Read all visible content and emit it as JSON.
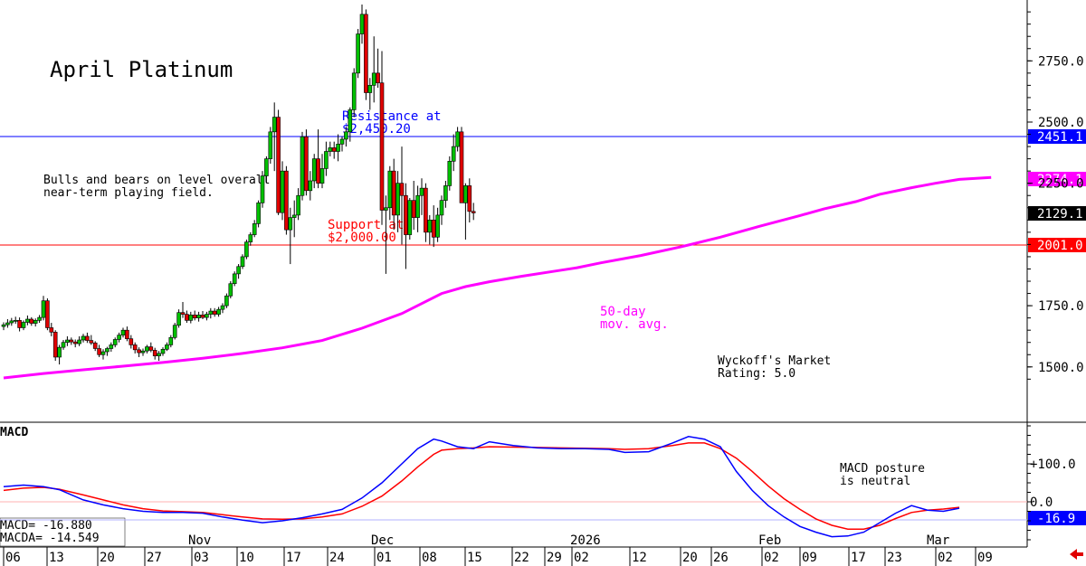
{
  "chart_data": {
    "type": "candlestick",
    "title": "April Platinum",
    "annotations": {
      "comment": [
        "Bulls and bears on level overall",
        "near-term playing field."
      ],
      "resistance": [
        "Resistance at",
        "$2,450.20"
      ],
      "support": [
        "Support at",
        "$2,000.00"
      ],
      "ma": [
        "50-day",
        "mov. avg."
      ],
      "rating": [
        "Wyckoff's Market",
        "Rating: 5.0"
      ]
    },
    "levels": {
      "resistance": 2450.2,
      "support": 2000.0
    },
    "y_ticks": [
      {
        "value": 2750,
        "label": "2750.0"
      },
      {
        "value": 2500,
        "label": "2500.0"
      },
      {
        "value": 2250,
        "label": "2250.0"
      },
      {
        "value": 1750,
        "label": "1750.0"
      },
      {
        "value": 1500,
        "label": "1500.0"
      }
    ],
    "price_tags": [
      {
        "value": 2451.1,
        "text": "2451.1",
        "color": "#0000ff"
      },
      {
        "value": 2274.1,
        "text": "2274.1",
        "color": "#ff00ff"
      },
      {
        "value": 2129.1,
        "text": "2129.1",
        "color": "#000000"
      },
      {
        "value": 2001.0,
        "text": "2001.0",
        "color": "#ff0000"
      }
    ],
    "x_labels": [
      "06",
      "13",
      "20",
      "27",
      "03",
      "10",
      "17",
      "24",
      "01",
      "08",
      "15",
      "22",
      "29",
      "02",
      "12",
      "20",
      "26",
      "02",
      "09",
      "17",
      "23",
      "02",
      "09"
    ],
    "months": [
      "Nov",
      "Dec",
      "2026",
      "Feb",
      "Mar"
    ],
    "colors": {
      "up": "#00c000",
      "down": "#e00000",
      "ma": "#ff00ff",
      "macd": "#0000ff",
      "signal": "#ff0000"
    },
    "candles": [
      [
        1665,
        1682,
        1650,
        1672
      ],
      [
        1672,
        1695,
        1660,
        1680
      ],
      [
        1680,
        1700,
        1668,
        1688
      ],
      [
        1688,
        1705,
        1676,
        1690
      ],
      [
        1690,
        1702,
        1645,
        1660
      ],
      [
        1660,
        1690,
        1650,
        1682
      ],
      [
        1682,
        1710,
        1670,
        1695
      ],
      [
        1695,
        1703,
        1668,
        1678
      ],
      [
        1678,
        1698,
        1665,
        1690
      ],
      [
        1690,
        1712,
        1680,
        1702
      ],
      [
        1702,
        1790,
        1690,
        1770
      ],
      [
        1770,
        1780,
        1650,
        1660
      ],
      [
        1660,
        1680,
        1625,
        1642
      ],
      [
        1642,
        1650,
        1525,
        1540
      ],
      [
        1540,
        1590,
        1510,
        1580
      ],
      [
        1580,
        1610,
        1570,
        1600
      ],
      [
        1600,
        1625,
        1585,
        1610
      ],
      [
        1610,
        1620,
        1590,
        1602
      ],
      [
        1602,
        1612,
        1580,
        1595
      ],
      [
        1595,
        1625,
        1585,
        1610
      ],
      [
        1610,
        1635,
        1600,
        1625
      ],
      [
        1625,
        1640,
        1598,
        1608
      ],
      [
        1608,
        1630,
        1590,
        1598
      ],
      [
        1598,
        1605,
        1565,
        1575
      ],
      [
        1575,
        1590,
        1540,
        1550
      ],
      [
        1550,
        1572,
        1530,
        1562
      ],
      [
        1562,
        1582,
        1545,
        1575
      ],
      [
        1575,
        1600,
        1562,
        1590
      ],
      [
        1590,
        1620,
        1580,
        1612
      ],
      [
        1612,
        1640,
        1600,
        1630
      ],
      [
        1630,
        1660,
        1620,
        1650
      ],
      [
        1650,
        1665,
        1605,
        1615
      ],
      [
        1615,
        1630,
        1575,
        1590
      ],
      [
        1590,
        1600,
        1555,
        1570
      ],
      [
        1570,
        1580,
        1540,
        1558
      ],
      [
        1558,
        1575,
        1545,
        1565
      ],
      [
        1565,
        1590,
        1555,
        1582
      ],
      [
        1582,
        1600,
        1560,
        1568
      ],
      [
        1568,
        1578,
        1530,
        1545
      ],
      [
        1545,
        1565,
        1525,
        1555
      ],
      [
        1555,
        1580,
        1545,
        1572
      ],
      [
        1572,
        1600,
        1565,
        1590
      ],
      [
        1590,
        1630,
        1580,
        1620
      ],
      [
        1620,
        1680,
        1612,
        1670
      ],
      [
        1670,
        1735,
        1660,
        1722
      ],
      [
        1722,
        1765,
        1700,
        1715
      ],
      [
        1715,
        1730,
        1680,
        1690
      ],
      [
        1690,
        1725,
        1678,
        1712
      ],
      [
        1712,
        1730,
        1690,
        1700
      ],
      [
        1700,
        1725,
        1685,
        1712
      ],
      [
        1712,
        1728,
        1695,
        1702
      ],
      [
        1702,
        1725,
        1690,
        1715
      ],
      [
        1715,
        1740,
        1698,
        1728
      ],
      [
        1728,
        1740,
        1705,
        1715
      ],
      [
        1715,
        1745,
        1705,
        1735
      ],
      [
        1735,
        1760,
        1720,
        1750
      ],
      [
        1750,
        1800,
        1740,
        1790
      ],
      [
        1790,
        1850,
        1780,
        1840
      ],
      [
        1840,
        1890,
        1830,
        1880
      ],
      [
        1880,
        1920,
        1860,
        1910
      ],
      [
        1910,
        1960,
        1900,
        1950
      ],
      [
        1950,
        2020,
        1940,
        2010
      ],
      [
        2010,
        2050,
        1995,
        2040
      ],
      [
        2040,
        2100,
        2030,
        2085
      ],
      [
        2085,
        2180,
        2070,
        2170
      ],
      [
        2170,
        2300,
        2150,
        2280
      ],
      [
        2280,
        2360,
        2250,
        2350
      ],
      [
        2350,
        2480,
        2330,
        2460
      ],
      [
        2460,
        2580,
        2300,
        2520
      ],
      [
        2520,
        2550,
        2120,
        2130
      ],
      [
        2130,
        2340,
        2100,
        2300
      ],
      [
        2300,
        2320,
        2040,
        2060
      ],
      [
        2060,
        2150,
        1920,
        2110
      ],
      [
        2110,
        2180,
        2030,
        2120
      ],
      [
        2120,
        2230,
        2100,
        2200
      ],
      [
        2200,
        2460,
        2180,
        2440
      ],
      [
        2440,
        2470,
        2200,
        2220
      ],
      [
        2220,
        2300,
        2180,
        2260
      ],
      [
        2260,
        2370,
        2230,
        2350
      ],
      [
        2350,
        2470,
        2230,
        2250
      ],
      [
        2250,
        2370,
        2230,
        2310
      ],
      [
        2310,
        2420,
        2280,
        2380
      ],
      [
        2380,
        2420,
        2360,
        2395
      ],
      [
        2395,
        2420,
        2350,
        2380
      ],
      [
        2380,
        2450,
        2340,
        2410
      ],
      [
        2410,
        2440,
        2380,
        2430
      ],
      [
        2430,
        2480,
        2400,
        2460
      ],
      [
        2460,
        2560,
        2420,
        2550
      ],
      [
        2550,
        2720,
        2520,
        2700
      ],
      [
        2700,
        2880,
        2680,
        2860
      ],
      [
        2860,
        2980,
        2820,
        2940
      ],
      [
        2940,
        2960,
        2590,
        2620
      ],
      [
        2620,
        2680,
        2550,
        2650
      ],
      [
        2650,
        2850,
        2580,
        2700
      ],
      [
        2700,
        2800,
        2640,
        2660
      ],
      [
        2660,
        2790,
        2080,
        2140
      ],
      [
        2140,
        2200,
        1880,
        2150
      ],
      [
        2150,
        2320,
        2100,
        2300
      ],
      [
        2300,
        2350,
        2060,
        2120
      ],
      [
        2120,
        2300,
        2050,
        2250
      ],
      [
        2250,
        2400,
        2000,
        2200
      ],
      [
        2200,
        2250,
        1900,
        2040
      ],
      [
        2040,
        2190,
        2020,
        2180
      ],
      [
        2180,
        2260,
        2060,
        2110
      ],
      [
        2110,
        2240,
        2050,
        2200
      ],
      [
        2200,
        2270,
        2120,
        2230
      ],
      [
        2230,
        2250,
        2010,
        2050
      ],
      [
        2050,
        2120,
        2000,
        2100
      ],
      [
        2100,
        2160,
        1990,
        2030
      ],
      [
        2030,
        2150,
        2010,
        2120
      ],
      [
        2120,
        2200,
        2080,
        2180
      ],
      [
        2180,
        2260,
        2150,
        2240
      ],
      [
        2240,
        2360,
        2220,
        2340
      ],
      [
        2340,
        2450,
        2300,
        2400
      ],
      [
        2400,
        2480,
        2380,
        2460
      ],
      [
        2460,
        2480,
        2180,
        2170
      ],
      [
        2170,
        2250,
        2020,
        2240
      ],
      [
        2240,
        2270,
        2090,
        2135
      ],
      [
        2135,
        2170,
        2100,
        2129
      ]
    ],
    "ma50": [
      [
        0,
        1455
      ],
      [
        10,
        1473
      ],
      [
        20,
        1488
      ],
      [
        30,
        1503
      ],
      [
        40,
        1518
      ],
      [
        50,
        1535
      ],
      [
        60,
        1555
      ],
      [
        70,
        1578
      ],
      [
        80,
        1608
      ],
      [
        90,
        1658
      ],
      [
        100,
        1718
      ],
      [
        110,
        1800
      ],
      [
        116,
        1828
      ],
      [
        122,
        1848
      ],
      [
        130,
        1870
      ],
      [
        138,
        1890
      ],
      [
        144,
        1905
      ],
      [
        150,
        1925
      ],
      [
        160,
        1955
      ],
      [
        170,
        1990
      ],
      [
        180,
        2030
      ],
      [
        190,
        2075
      ],
      [
        200,
        2118
      ],
      [
        206,
        2145
      ],
      [
        214,
        2175
      ],
      [
        220,
        2205
      ],
      [
        228,
        2232
      ],
      [
        234,
        2250
      ],
      [
        240,
        2266
      ],
      [
        248,
        2274.1
      ]
    ],
    "macd": {
      "title": "MACD",
      "comment": [
        "MACD posture",
        "is neutral"
      ],
      "readout": [
        "MACD=   -16.880",
        "MACDA=  -14.549"
      ],
      "tag": "-16.9",
      "ticks": [
        {
          "value": 100,
          "label": "+100.0"
        },
        {
          "value": 0,
          "label": "0.0"
        }
      ],
      "macd_line": [
        [
          0,
          40
        ],
        [
          5,
          44
        ],
        [
          10,
          40
        ],
        [
          14,
          32
        ],
        [
          20,
          5
        ],
        [
          25,
          -8
        ],
        [
          30,
          -18
        ],
        [
          35,
          -25
        ],
        [
          40,
          -28
        ],
        [
          45,
          -28
        ],
        [
          50,
          -30
        ],
        [
          55,
          -40
        ],
        [
          60,
          -48
        ],
        [
          65,
          -55
        ],
        [
          70,
          -50
        ],
        [
          75,
          -42
        ],
        [
          80,
          -32
        ],
        [
          85,
          -20
        ],
        [
          90,
          10
        ],
        [
          95,
          50
        ],
        [
          100,
          100
        ],
        [
          104,
          140
        ],
        [
          108,
          165
        ],
        [
          110,
          160
        ],
        [
          114,
          145
        ],
        [
          118,
          140
        ],
        [
          122,
          158
        ],
        [
          128,
          148
        ],
        [
          134,
          142
        ],
        [
          140,
          140
        ],
        [
          146,
          140
        ],
        [
          152,
          138
        ],
        [
          156,
          130
        ],
        [
          162,
          132
        ],
        [
          168,
          155
        ],
        [
          172,
          172
        ],
        [
          176,
          165
        ],
        [
          180,
          145
        ],
        [
          184,
          80
        ],
        [
          188,
          30
        ],
        [
          192,
          -10
        ],
        [
          196,
          -40
        ],
        [
          200,
          -65
        ],
        [
          204,
          -80
        ],
        [
          208,
          -92
        ],
        [
          212,
          -90
        ],
        [
          216,
          -80
        ],
        [
          220,
          -55
        ],
        [
          224,
          -30
        ],
        [
          228,
          -10
        ],
        [
          232,
          -22
        ],
        [
          236,
          -25
        ],
        [
          240,
          -16.9
        ]
      ],
      "signal_line": [
        [
          0,
          30
        ],
        [
          5,
          36
        ],
        [
          10,
          38
        ],
        [
          14,
          33
        ],
        [
          20,
          18
        ],
        [
          25,
          5
        ],
        [
          30,
          -8
        ],
        [
          35,
          -18
        ],
        [
          40,
          -24
        ],
        [
          45,
          -26
        ],
        [
          50,
          -28
        ],
        [
          55,
          -34
        ],
        [
          60,
          -40
        ],
        [
          65,
          -45
        ],
        [
          70,
          -46
        ],
        [
          75,
          -45
        ],
        [
          80,
          -40
        ],
        [
          85,
          -32
        ],
        [
          90,
          -12
        ],
        [
          95,
          15
        ],
        [
          100,
          55
        ],
        [
          104,
          92
        ],
        [
          108,
          125
        ],
        [
          110,
          136
        ],
        [
          114,
          140
        ],
        [
          118,
          142
        ],
        [
          122,
          145
        ],
        [
          128,
          144
        ],
        [
          134,
          143
        ],
        [
          140,
          142
        ],
        [
          146,
          141
        ],
        [
          152,
          140
        ],
        [
          156,
          138
        ],
        [
          162,
          140
        ],
        [
          168,
          148
        ],
        [
          172,
          155
        ],
        [
          176,
          155
        ],
        [
          180,
          140
        ],
        [
          184,
          115
        ],
        [
          188,
          80
        ],
        [
          192,
          42
        ],
        [
          196,
          8
        ],
        [
          200,
          -20
        ],
        [
          204,
          -45
        ],
        [
          208,
          -62
        ],
        [
          212,
          -72
        ],
        [
          216,
          -72
        ],
        [
          220,
          -62
        ],
        [
          224,
          -44
        ],
        [
          228,
          -28
        ],
        [
          232,
          -22
        ],
        [
          236,
          -19
        ],
        [
          240,
          -14.549
        ]
      ]
    }
  }
}
